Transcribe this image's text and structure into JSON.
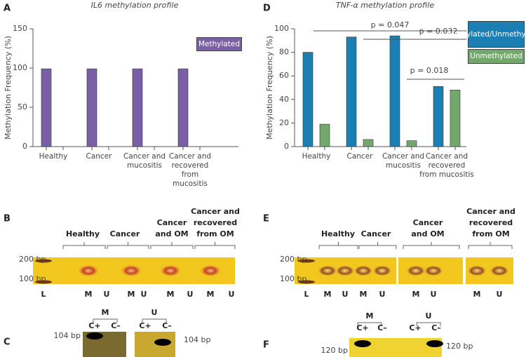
{
  "chart_data": [
    {
      "type": "bar",
      "panel": "A",
      "title": "IL6 methylation profile",
      "y_label": "Methylation Frequency (%)",
      "categories": [
        "Healthy",
        "Cancer",
        "Cancer and mucositis",
        "Cancer and recovered from mucositis"
      ],
      "series": [
        {
          "name": "Methylated",
          "color": "#7b5fa6",
          "values": [
            99,
            99,
            99,
            99
          ]
        }
      ],
      "ylim": [
        0,
        150
      ],
      "yticks": [
        0,
        50,
        100,
        150
      ],
      "legend": "top right"
    },
    {
      "type": "bar",
      "panel": "D",
      "title": "TNF-α methylation profile",
      "y_label": "Methylation Frequency (%)",
      "categories": [
        "Healthy",
        "Cancer",
        "Cancer and mucositis",
        "Cancer and recovered from mucositis"
      ],
      "series": [
        {
          "name": "Methylated/Unmethylated",
          "color": "#1c7fb3",
          "values": [
            80,
            93,
            94,
            51
          ]
        },
        {
          "name": "Unmethylated",
          "color": "#72a86c",
          "values": [
            19,
            6,
            5,
            48
          ]
        }
      ],
      "ylim": [
        0,
        100
      ],
      "yticks": [
        0,
        20,
        40,
        60,
        80,
        100
      ],
      "legend": "right",
      "annotations": [
        "p = 0.047",
        "p = 0.032",
        "p = 0.018"
      ]
    }
  ],
  "gels": {
    "B": {
      "label": "B",
      "sizes": [
        "200 bp",
        "100 bp"
      ],
      "groups": [
        [
          "Healthy"
        ],
        [
          "Cancer"
        ],
        [
          "Cancer",
          "and OM"
        ],
        [
          "Cancer and",
          "recovered",
          "from OM"
        ]
      ],
      "lanes": [
        "L",
        "M",
        "U",
        "M",
        "U",
        "M",
        "U",
        "M",
        "U"
      ]
    },
    "C": {
      "label": "C",
      "groups": [
        "M",
        "U"
      ],
      "lanes": [
        "C+",
        "C–",
        "C+",
        "C–"
      ],
      "sizes": [
        "104 bp",
        "104 bp"
      ]
    },
    "E": {
      "label": "E",
      "sizes": [
        "200 bp",
        "100 bp"
      ],
      "groups": [
        [
          "Healthy"
        ],
        [
          "Cancer"
        ],
        [
          "Cancer",
          "and OM"
        ],
        [
          "Cancer and",
          "recovered",
          "from OM"
        ]
      ],
      "lanes": [
        "L",
        "M",
        "U",
        "M",
        "U",
        "M",
        "U",
        "M",
        "U"
      ]
    },
    "F": {
      "label": "F",
      "groups": [
        "M",
        "U"
      ],
      "lanes": [
        "C+",
        "C–",
        "C+",
        "C–"
      ],
      "sizes": [
        "120 bp",
        "120 bp"
      ]
    }
  }
}
